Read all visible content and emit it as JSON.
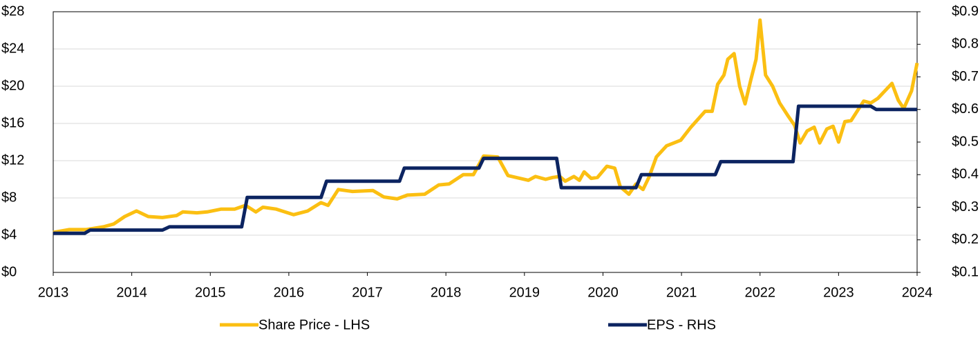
{
  "chart_data": {
    "type": "line",
    "xlim": [
      2013,
      2024
    ],
    "xticks": [
      2013,
      2014,
      2015,
      2016,
      2017,
      2018,
      2019,
      2020,
      2021,
      2022,
      2023,
      2024
    ],
    "ylim": [
      0,
      28
    ],
    "yticks": [
      {
        "value": 0,
        "label": "$0"
      },
      {
        "value": 4,
        "label": "$4"
      },
      {
        "value": 8,
        "label": "$8"
      },
      {
        "value": 12,
        "label": "$12"
      },
      {
        "value": 16,
        "label": "$16"
      },
      {
        "value": 20,
        "label": "$20"
      },
      {
        "value": 24,
        "label": "$24"
      },
      {
        "value": 28,
        "label": "$28"
      }
    ],
    "y2lim": [
      0.1,
      0.9
    ],
    "y2ticks": [
      {
        "value": 0.1,
        "label": "$0.1"
      },
      {
        "value": 0.2,
        "label": "$0.2"
      },
      {
        "value": 0.3,
        "label": "$0.3"
      },
      {
        "value": 0.4,
        "label": "$0.4"
      },
      {
        "value": 0.5,
        "label": "$0.5"
      },
      {
        "value": 0.6,
        "label": "$0.6"
      },
      {
        "value": 0.7,
        "label": "$0.7"
      },
      {
        "value": 0.8,
        "label": "$0.8"
      },
      {
        "value": 0.9,
        "label": "$0.9"
      }
    ],
    "grid": true,
    "legend": "bottom",
    "series": [
      {
        "name": "Share Price - LHS",
        "color": "#fbbf12",
        "x": [
          2013.0,
          2013.2,
          2013.42,
          2013.64,
          2013.77,
          2013.91,
          2014.06,
          2014.21,
          2014.39,
          2014.57,
          2014.65,
          2014.83,
          2014.96,
          2015.14,
          2015.31,
          2015.45,
          2015.58,
          2015.67,
          2015.84,
          2016.06,
          2016.24,
          2016.41,
          2016.5,
          2016.63,
          2016.81,
          2017.07,
          2017.21,
          2017.38,
          2017.51,
          2017.73,
          2017.91,
          2018.04,
          2018.22,
          2018.35,
          2018.48,
          2018.66,
          2018.79,
          2019.05,
          2019.14,
          2019.27,
          2019.36,
          2019.45,
          2019.52,
          2019.63,
          2019.7,
          2019.76,
          2019.85,
          2019.93,
          2020.05,
          2020.15,
          2020.22,
          2020.33,
          2020.42,
          2020.51,
          2020.59,
          2020.68,
          2020.81,
          2020.99,
          2021.12,
          2021.3,
          2021.39,
          2021.46,
          2021.54,
          2021.59,
          2021.67,
          2021.74,
          2021.81,
          2021.88,
          2021.95,
          2022.0,
          2022.07,
          2022.16,
          2022.25,
          2022.35,
          2022.44,
          2022.51,
          2022.6,
          2022.69,
          2022.76,
          2022.85,
          2022.93,
          2023.0,
          2023.08,
          2023.16,
          2023.25,
          2023.32,
          2023.41,
          2023.5,
          2023.59,
          2023.68,
          2023.76,
          2023.83,
          2023.93,
          2024.0
        ],
        "values": [
          4.3,
          4.6,
          4.6,
          4.9,
          5.2,
          6.0,
          6.6,
          6.0,
          5.9,
          6.1,
          6.5,
          6.4,
          6.5,
          6.8,
          6.8,
          7.2,
          6.5,
          7.0,
          6.8,
          6.2,
          6.6,
          7.5,
          7.2,
          8.9,
          8.7,
          8.8,
          8.1,
          7.9,
          8.3,
          8.4,
          9.4,
          9.5,
          10.5,
          10.5,
          12.5,
          12.4,
          10.4,
          9.9,
          10.3,
          10.0,
          10.2,
          10.3,
          9.8,
          10.3,
          9.9,
          10.8,
          10.1,
          10.2,
          11.4,
          11.2,
          9.2,
          8.4,
          9.5,
          8.9,
          10.3,
          12.4,
          13.6,
          14.2,
          15.6,
          17.3,
          17.3,
          20.2,
          21.2,
          22.9,
          23.5,
          20.0,
          18.1,
          20.6,
          22.9,
          27.1,
          21.2,
          20.0,
          18.2,
          16.9,
          15.8,
          13.9,
          15.2,
          15.6,
          13.9,
          15.4,
          15.7,
          14.0,
          16.2,
          16.3,
          17.5,
          18.4,
          18.2,
          18.7,
          19.5,
          20.3,
          18.5,
          17.6,
          19.5,
          22.5
        ]
      },
      {
        "name": "EPS - RHS",
        "color": "#0c2461",
        "axis": "y2",
        "x": [
          2013.0,
          2013.4,
          2013.47,
          2014.39,
          2014.48,
          2015.4,
          2015.47,
          2016.41,
          2016.48,
          2017.41,
          2017.47,
          2018.42,
          2018.48,
          2019.41,
          2019.47,
          2020.42,
          2020.49,
          2021.43,
          2021.5,
          2022.42,
          2022.49,
          2023.41,
          2023.48,
          2024.0
        ],
        "values": [
          0.22,
          0.22,
          0.23,
          0.23,
          0.24,
          0.24,
          0.33,
          0.33,
          0.38,
          0.38,
          0.42,
          0.42,
          0.45,
          0.45,
          0.36,
          0.36,
          0.4,
          0.4,
          0.44,
          0.44,
          0.61,
          0.61,
          0.6,
          0.6
        ]
      }
    ]
  }
}
